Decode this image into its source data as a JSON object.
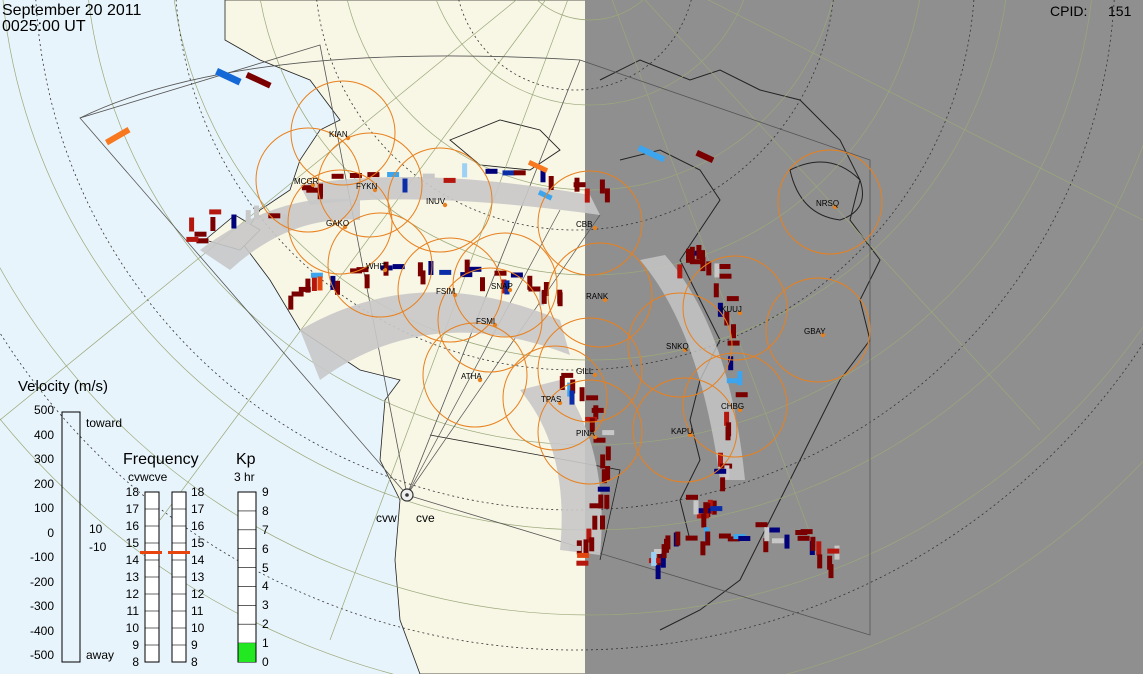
{
  "header": {
    "date": "September 20 2011",
    "time": "0025:00 UT",
    "cpid_label": "CPID:",
    "cpid_value": "151"
  },
  "map": {
    "ocean_color": "#e8f4fb",
    "land_color": "#f8f6e4",
    "night_color": "#8f8f8f",
    "radars": [
      {
        "label": "cvw"
      },
      {
        "label": "cve"
      }
    ],
    "stations": [
      {
        "code": "KIAN"
      },
      {
        "code": "MCGR"
      },
      {
        "code": "FYKN"
      },
      {
        "code": "GAKO"
      },
      {
        "code": "INUV"
      },
      {
        "code": "WHIT"
      },
      {
        "code": "FSIM"
      },
      {
        "code": "SNAP"
      },
      {
        "code": "FSMI"
      },
      {
        "code": "RANK"
      },
      {
        "code": "ATHA"
      },
      {
        "code": "GILL"
      },
      {
        "code": "TPAS"
      },
      {
        "code": "PINA"
      },
      {
        "code": "KAPU"
      },
      {
        "code": "CHBG"
      },
      {
        "code": "SNKQ"
      },
      {
        "code": "KUUJ"
      },
      {
        "code": "GBAY"
      },
      {
        "code": "NRSQ"
      },
      {
        "code": "CBB"
      }
    ]
  },
  "velocity_legend": {
    "title": "Velocity (m/s)",
    "toward_label": "toward",
    "away_label": "away",
    "ticks": [
      "500",
      "400",
      "300",
      "200",
      "100",
      "0",
      "-100",
      "-200",
      "-300",
      "-400",
      "-500"
    ],
    "inner_ticks": [
      "10",
      "-10"
    ],
    "colors": [
      "#fdd9b8",
      "#fdb06f",
      "#f7781e",
      "#e24710",
      "#b5170e",
      "#7a0000",
      "#c8c8c8",
      "#00007a",
      "#0b2ea8",
      "#1569d6",
      "#3da5ee",
      "#9cd0f5"
    ]
  },
  "frequency_legend": {
    "title": "Frequency",
    "subtitle": "cvwcve",
    "ticks": [
      "18",
      "17",
      "16",
      "15",
      "14",
      "13",
      "12",
      "11",
      "10",
      "9",
      "8"
    ],
    "cvw_freq": 15,
    "cve_freq": 15,
    "marker_color": "#e8450e"
  },
  "kp_legend": {
    "title": "Kp",
    "subtitle": "3 hr",
    "ticks": [
      "9",
      "8",
      "7",
      "6",
      "5",
      "4",
      "3",
      "2",
      "1",
      "0"
    ],
    "value": 1,
    "fill_color": "#22e822"
  }
}
